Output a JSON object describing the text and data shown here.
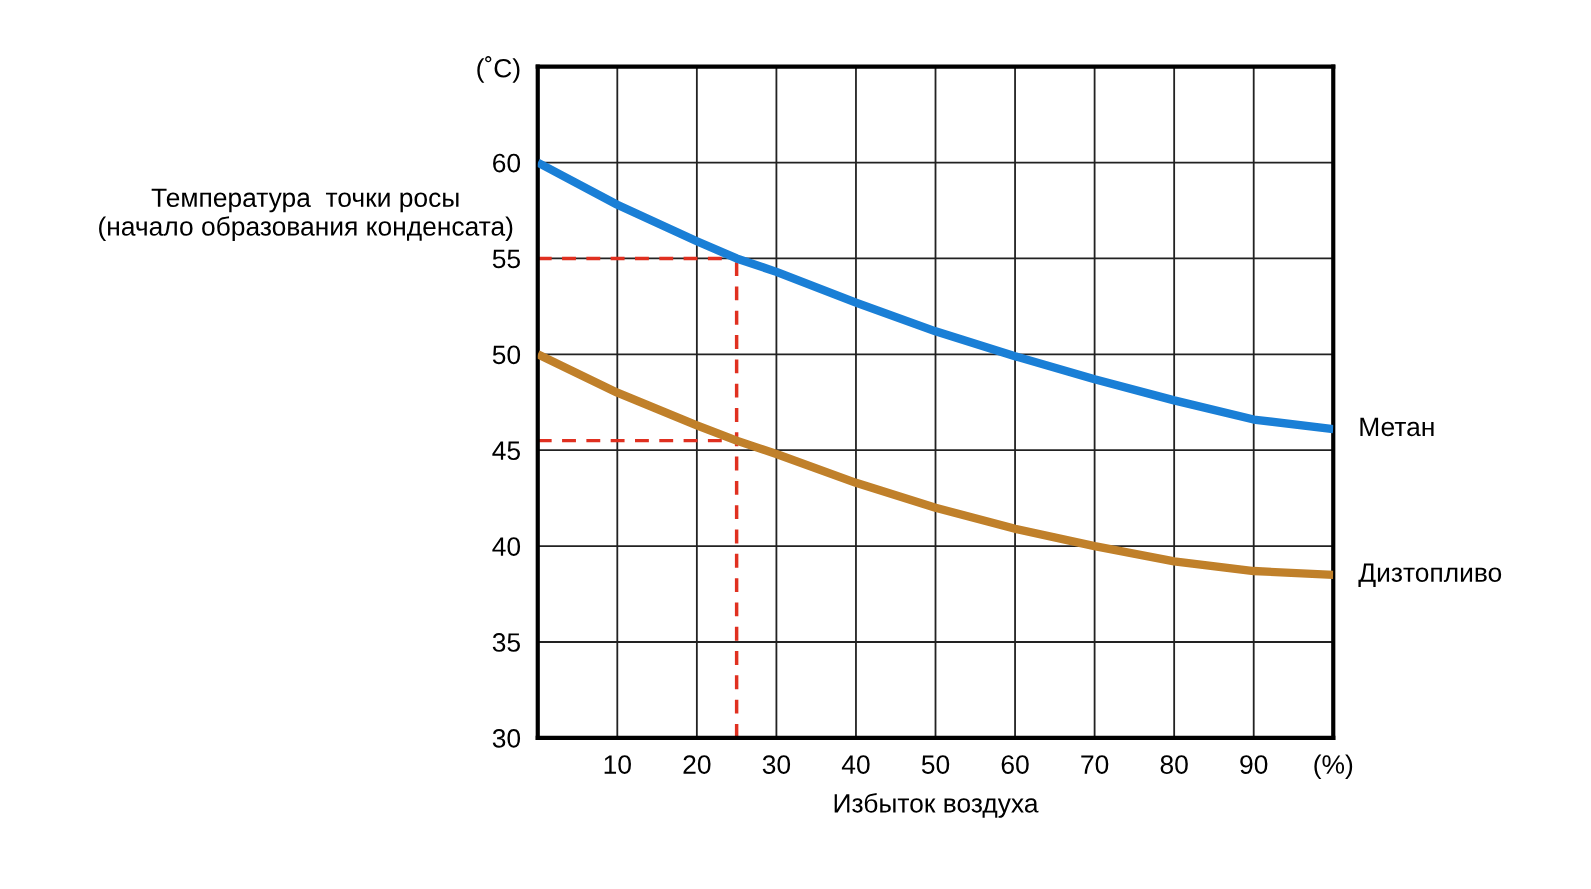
{
  "chart_data": {
    "type": "line",
    "xlabel": "Избыток воздуха",
    "ylabel": "Температура  точки росы\n(начало образования конденсата)",
    "x": [
      0,
      10,
      20,
      25,
      30,
      40,
      50,
      60,
      70,
      80,
      90,
      100
    ],
    "series": [
      {
        "name": "Метан",
        "color": "#1a7fd6",
        "values": [
          60,
          57.8,
          55.9,
          55,
          54.3,
          52.7,
          51.2,
          49.9,
          48.7,
          47.6,
          46.6,
          46.1
        ]
      },
      {
        "name": "Дизтопливо",
        "color": "#c0802a",
        "values": [
          50,
          48,
          46.3,
          45.5,
          44.8,
          43.3,
          42.0,
          40.9,
          40.0,
          39.2,
          38.7,
          38.5
        ]
      }
    ],
    "xlim": [
      0,
      100
    ],
    "ylim": [
      30,
      65
    ],
    "xticks": [
      10,
      20,
      30,
      40,
      50,
      60,
      70,
      80,
      90,
      {
        "value": 100,
        "label": "(%)"
      }
    ],
    "yticks": [
      30,
      35,
      40,
      45,
      50,
      55,
      60,
      {
        "value": 65,
        "label": "(˚C)"
      }
    ],
    "grid": true,
    "legend": false,
    "marker": "none",
    "line_style": "solid",
    "ref_lines": [
      {
        "axis": "x",
        "value": 25,
        "color": "#e03020",
        "line_style": "dashed"
      },
      {
        "axis": "y",
        "value": 55,
        "color": "#e03020",
        "line_style": "dashed"
      },
      {
        "axis": "y",
        "value": 45.5,
        "color": "#e03020",
        "line_style": "dashed"
      }
    ]
  }
}
